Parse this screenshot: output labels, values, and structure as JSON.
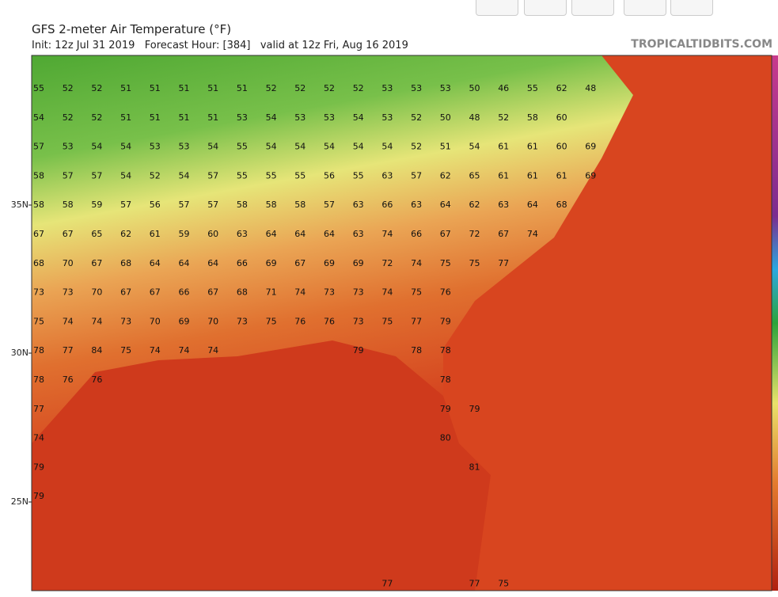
{
  "header": {
    "title": "GFS 2-meter Air Temperature (°F)",
    "subtitle": "Init: 12z Jul 31 2019   Forecast Hour: [384]   valid at 12z Fri, Aug 16 2019",
    "site": "TROPICALTIDBITS.COM"
  },
  "map": {
    "lat_labels": [
      "35N",
      "30N",
      "25N"
    ],
    "rows": [
      [
        55,
        52,
        52,
        51,
        51,
        51,
        51,
        51,
        52,
        52,
        52,
        52,
        53,
        53,
        53,
        50,
        46,
        55,
        62,
        48
      ],
      [
        54,
        52,
        52,
        51,
        51,
        51,
        51,
        53,
        54,
        53,
        53,
        54,
        53,
        52,
        50,
        48,
        52,
        58,
        60,
        null
      ],
      [
        57,
        53,
        54,
        54,
        53,
        53,
        54,
        55,
        54,
        54,
        54,
        54,
        54,
        52,
        51,
        54,
        61,
        61,
        60,
        69
      ],
      [
        58,
        57,
        57,
        54,
        52,
        54,
        57,
        55,
        55,
        55,
        56,
        55,
        63,
        57,
        62,
        65,
        61,
        61,
        61,
        69
      ],
      [
        58,
        58,
        59,
        57,
        56,
        57,
        57,
        58,
        58,
        58,
        57,
        63,
        66,
        63,
        64,
        62,
        63,
        64,
        68
      ],
      [
        67,
        67,
        65,
        62,
        61,
        59,
        60,
        63,
        64,
        64,
        64,
        63,
        74,
        66,
        67,
        72,
        67,
        74
      ],
      [
        68,
        70,
        67,
        68,
        64,
        64,
        64,
        66,
        69,
        67,
        69,
        69,
        72,
        74,
        75,
        75,
        77
      ],
      [
        73,
        73,
        70,
        67,
        67,
        66,
        67,
        68,
        71,
        74,
        73,
        73,
        74,
        75,
        76
      ],
      [
        75,
        74,
        74,
        73,
        70,
        69,
        70,
        73,
        75,
        76,
        76,
        73,
        75,
        77,
        79
      ],
      [
        78,
        77,
        84,
        75,
        74,
        74,
        74,
        null,
        null,
        null,
        null,
        79,
        null,
        78,
        78
      ],
      [
        78,
        76,
        76,
        null,
        null,
        null,
        null,
        null,
        null,
        null,
        null,
        null,
        null,
        null,
        78
      ],
      [
        77,
        null,
        null,
        null,
        null,
        null,
        null,
        null,
        null,
        null,
        null,
        null,
        null,
        null,
        79,
        79
      ],
      [
        74,
        null,
        null,
        null,
        null,
        null,
        null,
        null,
        null,
        null,
        null,
        null,
        null,
        null,
        80
      ],
      [
        79,
        null,
        null,
        null,
        null,
        null,
        null,
        null,
        null,
        null,
        null,
        null,
        null,
        null,
        null,
        81
      ],
      [
        79
      ],
      [],
      [],
      [
        null,
        null,
        null,
        null,
        null,
        null,
        null,
        null,
        null,
        null,
        null,
        null,
        77,
        null,
        null,
        77,
        75
      ]
    ]
  }
}
